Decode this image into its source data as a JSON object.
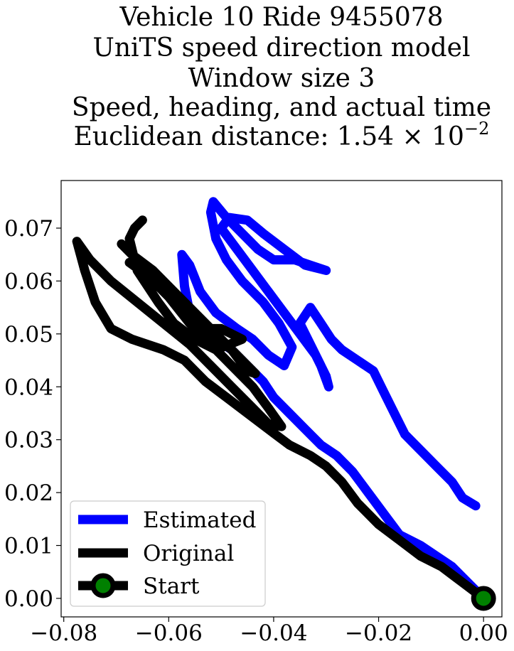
{
  "chart_data": {
    "type": "line",
    "title_lines": [
      "Vehicle 10 Ride 9455078",
      "UniTS speed direction model",
      "Window size 3",
      "Speed, heading, and actual time"
    ],
    "title_distance_prefix": "Euclidean distance: 1.54 × 10",
    "title_distance_exponent": "−2",
    "xlabel": "",
    "ylabel": "",
    "xlim": [
      -0.0805,
      0.0035
    ],
    "ylim": [
      -0.0035,
      0.079
    ],
    "xticks": [
      -0.08,
      -0.06,
      -0.04,
      -0.02,
      0.0
    ],
    "xtick_labels": [
      "−0.08",
      "−0.06",
      "−0.04",
      "−0.02",
      "0.00"
    ],
    "yticks": [
      0.0,
      0.01,
      0.02,
      0.03,
      0.04,
      0.05,
      0.06,
      0.07
    ],
    "ytick_labels": [
      "0.00",
      "0.01",
      "0.02",
      "0.03",
      "0.04",
      "0.05",
      "0.06",
      "0.07"
    ],
    "grid": false,
    "legend_position": "lower-left",
    "series": [
      {
        "name": "Estimated",
        "color": "#0000ff",
        "points": [
          [
            0.0,
            0.0
          ],
          [
            -0.003,
            0.003
          ],
          [
            -0.006,
            0.006
          ],
          [
            -0.009,
            0.008
          ],
          [
            -0.012,
            0.01
          ],
          [
            -0.016,
            0.012
          ],
          [
            -0.019,
            0.016
          ],
          [
            -0.022,
            0.02
          ],
          [
            -0.025,
            0.024
          ],
          [
            -0.028,
            0.027
          ],
          [
            -0.031,
            0.029
          ],
          [
            -0.034,
            0.032
          ],
          [
            -0.037,
            0.035
          ],
          [
            -0.04,
            0.038
          ],
          [
            -0.042,
            0.041
          ],
          [
            -0.045,
            0.044
          ],
          [
            -0.048,
            0.047
          ],
          [
            -0.051,
            0.049
          ],
          [
            -0.054,
            0.051
          ],
          [
            -0.056,
            0.054
          ],
          [
            -0.057,
            0.059
          ],
          [
            -0.0575,
            0.065
          ],
          [
            -0.056,
            0.063
          ],
          [
            -0.054,
            0.058
          ],
          [
            -0.051,
            0.054
          ],
          [
            -0.047,
            0.051
          ],
          [
            -0.044,
            0.049
          ],
          [
            -0.041,
            0.046
          ],
          [
            -0.038,
            0.044
          ],
          [
            -0.0365,
            0.0475
          ],
          [
            -0.039,
            0.052
          ],
          [
            -0.042,
            0.056
          ],
          [
            -0.046,
            0.06
          ],
          [
            -0.049,
            0.064
          ],
          [
            -0.051,
            0.068
          ],
          [
            -0.052,
            0.073
          ],
          [
            -0.0515,
            0.075
          ],
          [
            -0.049,
            0.072
          ],
          [
            -0.046,
            0.069
          ],
          [
            -0.043,
            0.066
          ],
          [
            -0.04,
            0.064
          ],
          [
            -0.036,
            0.064
          ],
          [
            -0.033,
            0.063
          ],
          [
            -0.03,
            0.062
          ],
          [
            -0.034,
            0.063
          ],
          [
            -0.038,
            0.066
          ],
          [
            -0.042,
            0.069
          ],
          [
            -0.045,
            0.0715
          ],
          [
            -0.0485,
            0.072
          ],
          [
            -0.05,
            0.07
          ],
          [
            -0.047,
            0.066
          ],
          [
            -0.044,
            0.062
          ],
          [
            -0.041,
            0.058
          ],
          [
            -0.038,
            0.054
          ],
          [
            -0.035,
            0.05
          ],
          [
            -0.032,
            0.046
          ],
          [
            -0.03,
            0.042
          ],
          [
            -0.0295,
            0.04
          ],
          [
            -0.031,
            0.044
          ],
          [
            -0.033,
            0.048
          ],
          [
            -0.035,
            0.052
          ],
          [
            -0.033,
            0.055
          ],
          [
            -0.031,
            0.052
          ],
          [
            -0.029,
            0.049
          ],
          [
            -0.027,
            0.047
          ],
          [
            -0.024,
            0.045
          ],
          [
            -0.021,
            0.043
          ],
          [
            -0.019,
            0.039
          ],
          [
            -0.017,
            0.035
          ],
          [
            -0.015,
            0.031
          ],
          [
            -0.012,
            0.028
          ],
          [
            -0.009,
            0.025
          ],
          [
            -0.006,
            0.022
          ],
          [
            -0.004,
            0.019
          ],
          [
            -0.0015,
            0.0175
          ]
        ]
      },
      {
        "name": "Original",
        "color": "#000000",
        "points": [
          [
            0.0,
            0.0
          ],
          [
            -0.004,
            0.003
          ],
          [
            -0.008,
            0.006
          ],
          [
            -0.012,
            0.008
          ],
          [
            -0.016,
            0.011
          ],
          [
            -0.02,
            0.014
          ],
          [
            -0.024,
            0.018
          ],
          [
            -0.027,
            0.022
          ],
          [
            -0.03,
            0.025
          ],
          [
            -0.033,
            0.027
          ],
          [
            -0.037,
            0.029
          ],
          [
            -0.041,
            0.032
          ],
          [
            -0.045,
            0.035
          ],
          [
            -0.049,
            0.038
          ],
          [
            -0.053,
            0.041
          ],
          [
            -0.057,
            0.045
          ],
          [
            -0.061,
            0.047
          ],
          [
            -0.067,
            0.049
          ],
          [
            -0.071,
            0.051
          ],
          [
            -0.074,
            0.056
          ],
          [
            -0.076,
            0.062
          ],
          [
            -0.0775,
            0.0675
          ],
          [
            -0.075,
            0.064
          ],
          [
            -0.071,
            0.06
          ],
          [
            -0.066,
            0.056
          ],
          [
            -0.061,
            0.052
          ],
          [
            -0.056,
            0.048
          ],
          [
            -0.052,
            0.044
          ],
          [
            -0.048,
            0.04
          ],
          [
            -0.044,
            0.036
          ],
          [
            -0.041,
            0.033
          ],
          [
            -0.0385,
            0.0325
          ],
          [
            -0.041,
            0.036
          ],
          [
            -0.044,
            0.04
          ],
          [
            -0.048,
            0.044
          ],
          [
            -0.052,
            0.048
          ],
          [
            -0.056,
            0.052
          ],
          [
            -0.06,
            0.057
          ],
          [
            -0.064,
            0.061
          ],
          [
            -0.0675,
            0.0635
          ],
          [
            -0.064,
            0.0615
          ],
          [
            -0.06,
            0.058
          ],
          [
            -0.056,
            0.054
          ],
          [
            -0.052,
            0.05
          ],
          [
            -0.048,
            0.047
          ],
          [
            -0.045,
            0.043
          ],
          [
            -0.0435,
            0.0425
          ],
          [
            -0.047,
            0.046
          ],
          [
            -0.051,
            0.05
          ],
          [
            -0.055,
            0.054
          ],
          [
            -0.059,
            0.058
          ],
          [
            -0.063,
            0.062
          ],
          [
            -0.067,
            0.065
          ],
          [
            -0.069,
            0.067
          ],
          [
            -0.066,
            0.064
          ],
          [
            -0.062,
            0.06
          ],
          [
            -0.058,
            0.055
          ],
          [
            -0.054,
            0.051
          ],
          [
            -0.05,
            0.051
          ],
          [
            -0.046,
            0.049
          ],
          [
            -0.051,
            0.047
          ],
          [
            -0.055,
            0.049
          ],
          [
            -0.059,
            0.052
          ],
          [
            -0.062,
            0.056
          ],
          [
            -0.066,
            0.062
          ],
          [
            -0.0675,
            0.068
          ],
          [
            -0.0665,
            0.07
          ],
          [
            -0.065,
            0.0715
          ]
        ]
      }
    ],
    "start_point": [
      0.0,
      0.0
    ],
    "legend": {
      "estimated_label": "Estimated",
      "original_label": "Original",
      "start_label": "Start"
    },
    "colors": {
      "estimated": "#0000ff",
      "original": "#000000",
      "start_marker_fill": "#008000",
      "start_marker_edge": "#000000"
    }
  }
}
